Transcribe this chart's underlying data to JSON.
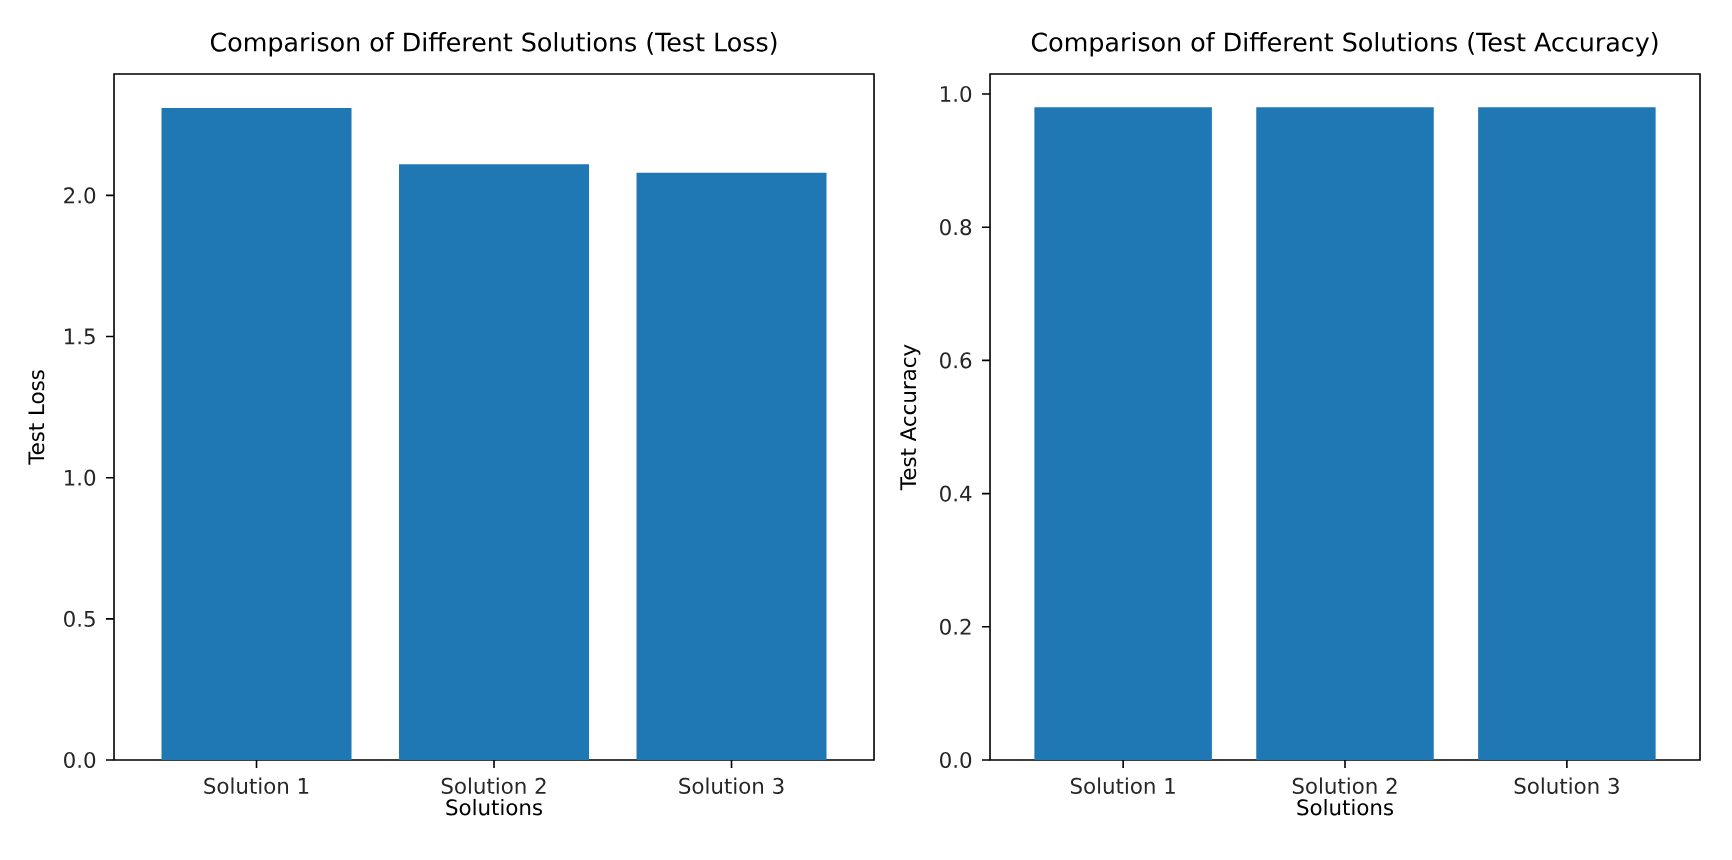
{
  "chart_data": [
    {
      "type": "bar",
      "title": "Comparison of Different Solutions (Test Loss)",
      "xlabel": "Solutions",
      "ylabel": "Test Loss",
      "categories": [
        "Solution 1",
        "Solution 2",
        "Solution 3"
      ],
      "values": [
        2.31,
        2.11,
        2.08
      ],
      "color": "#1f77b4",
      "ylim": [
        0,
        2.43
      ],
      "yticks": [
        {
          "value": 0,
          "label": "0.0"
        },
        {
          "value": 0.5,
          "label": "0.5"
        },
        {
          "value": 1,
          "label": "1.0"
        },
        {
          "value": 1.5,
          "label": "1.5"
        },
        {
          "value": 2,
          "label": "2.0"
        }
      ]
    },
    {
      "type": "bar",
      "title": "Comparison of Different Solutions (Test Accuracy)",
      "xlabel": "Solutions",
      "ylabel": "Test Accuracy",
      "categories": [
        "Solution 1",
        "Solution 2",
        "Solution 3"
      ],
      "values": [
        0.98,
        0.98,
        0.98
      ],
      "color": "#1f77b4",
      "ylim": [
        0,
        1.03
      ],
      "yticks": [
        {
          "value": 0,
          "label": "0.0"
        },
        {
          "value": 0.2,
          "label": "0.2"
        },
        {
          "value": 0.4,
          "label": "0.4"
        },
        {
          "value": 0.6,
          "label": "0.6"
        },
        {
          "value": 0.8,
          "label": "0.8"
        },
        {
          "value": 1,
          "label": "1.0"
        }
      ]
    }
  ]
}
